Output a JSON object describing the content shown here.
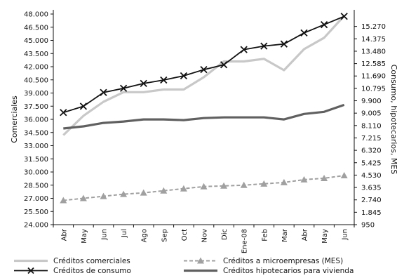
{
  "chart_data": {
    "type": "line",
    "title": "",
    "categories": [
      "Abr",
      "May",
      "Jun",
      "Jul",
      "Ago",
      "Sep",
      "Oct",
      "Nov",
      "Dic",
      "Ene-08",
      "Feb",
      "Mar",
      "Abr",
      "May",
      "Jun"
    ],
    "left_axis": {
      "label": "Comerciales",
      "range": [
        24000,
        48000
      ],
      "ticks": [
        "48.000",
        "46.500",
        "45.000",
        "43.500",
        "42.000",
        "40.500",
        "39.000",
        "37.500",
        "36.000",
        "34.500",
        "33.000",
        "31.500",
        "30.000",
        "28.500",
        "27.000",
        "25.500",
        "24.000"
      ],
      "tick_values": [
        48000,
        46500,
        45000,
        43500,
        42000,
        40500,
        39000,
        37500,
        36000,
        34500,
        33000,
        31500,
        30000,
        28500,
        27000,
        25500,
        24000
      ]
    },
    "right_axis": {
      "label": "Consumo, hipotecarios, MES",
      "range": [
        950,
        16165
      ],
      "ticks": [
        "15.270",
        "14.375",
        "13.480",
        "12.585",
        "11.690",
        "10.795",
        "9.900",
        "9.005",
        "8.110",
        "7.215",
        "6.320",
        "5.425",
        "4.530",
        "3.635",
        "2.740",
        "1.845",
        "950"
      ],
      "tick_values": [
        15270,
        14375,
        13480,
        12585,
        11690,
        10795,
        9900,
        9005,
        8110,
        7215,
        6320,
        5425,
        4530,
        3635,
        2740,
        1845,
        950
      ]
    },
    "series": [
      {
        "name": "Créditos comerciales",
        "axis": "left",
        "color": "#c8c8c8",
        "marker": "none",
        "values": [
          34200,
          36400,
          38000,
          39100,
          39100,
          39400,
          39400,
          40800,
          42600,
          42600,
          42900,
          41600,
          44000,
          45300,
          47800
        ]
      },
      {
        "name": "Créditos de consumo",
        "axis": "right",
        "color": "#111111",
        "marker": "x",
        "values": [
          9050,
          9500,
          10500,
          10800,
          11150,
          11400,
          11700,
          12150,
          12500,
          13600,
          13850,
          14000,
          14800,
          15400,
          16000
        ]
      },
      {
        "name": "Créditos a microempresas (MES)",
        "axis": "right",
        "color": "#a0a0a0",
        "marker": "triangle",
        "values": [
          2700,
          2850,
          3000,
          3150,
          3250,
          3400,
          3550,
          3700,
          3750,
          3800,
          3900,
          4000,
          4200,
          4300,
          4500
        ]
      },
      {
        "name": "Créditos hipotecarios para vivienda",
        "axis": "right",
        "color": "#606060",
        "marker": "none",
        "values": [
          7900,
          8050,
          8300,
          8400,
          8550,
          8550,
          8500,
          8650,
          8700,
          8700,
          8700,
          8550,
          8950,
          9100,
          9600
        ]
      }
    ],
    "legend_position": "bottom",
    "grid": false
  }
}
